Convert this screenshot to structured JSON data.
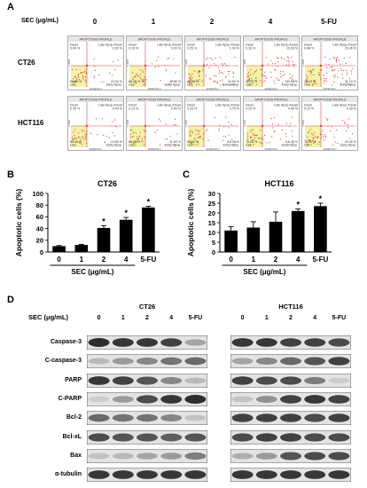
{
  "panels": {
    "a": "A",
    "b": "B",
    "c": "C",
    "d": "D"
  },
  "flow": {
    "sec_label": "SEC (μg/mL)",
    "columns": [
      "0",
      "1",
      "2",
      "4",
      "5-FU"
    ],
    "rows": [
      {
        "name": "CT26",
        "plots": [
          {
            "dead": "0.09 %",
            "late": "0.00 %",
            "live": "99.81 %",
            "early": "10.00 %"
          },
          {
            "dead": "0.19 %",
            "late": "0.00 %",
            "live": "86.28 %",
            "early": "11.56 %"
          },
          {
            "dead": "0.25 %",
            "late": "1.04 %",
            "live": "64.80 %",
            "early": "34.95 %"
          },
          {
            "dead": "0.18 %",
            "late": "10.28 %",
            "live": "40.25 %",
            "early": "40.95 %"
          },
          {
            "dead": "0.48 %",
            "late": "20.46 %",
            "live": "25.10 %",
            "early": "41.10 %"
          }
        ]
      },
      {
        "name": "HCT116",
        "plots": [
          {
            "dead": "0.05 %",
            "late": "0.00 %",
            "live": "89.35 %",
            "early": "10.60 %"
          },
          {
            "dead": "0.19 %",
            "late": "0.00 %",
            "live": "84.95 %",
            "early": "11.60 %"
          },
          {
            "dead": "0.25 %",
            "late": "3.75 %",
            "live": "80.60 %",
            "early": "15.40 %"
          },
          {
            "dead": "0.25 %",
            "late": "4.08 %",
            "live": "78.05 %",
            "early": "18.45 %"
          },
          {
            "dead": "0.10 %",
            "late": "4.28 %",
            "live": "78.10 %",
            "early": "20.45 %"
          }
        ]
      }
    ],
    "plot_header": "APOPTOSIS PROFILE",
    "q_dead": "Dead",
    "q_late": "Late Apop./Dead",
    "q_live": "Live",
    "q_early": "Early Apop.",
    "x_axis": "ANNEXIN V",
    "y_axis": "7-AAD"
  },
  "chart_data": [
    {
      "type": "bar",
      "title": "CT26",
      "categories": [
        "0",
        "1",
        "2",
        "4",
        "5-FU"
      ],
      "values": [
        10,
        12,
        41,
        55,
        76
      ],
      "errors": [
        1,
        1,
        4,
        4,
        2
      ],
      "significant": [
        false,
        false,
        true,
        true,
        true
      ],
      "ylabel": "Apoptotic cells (%)",
      "xlabel": "SEC (μg/mL)",
      "ylim": [
        0,
        100
      ],
      "yticks": [
        "0",
        "20",
        "40",
        "60",
        "80",
        "100"
      ],
      "bar_color": "#000000"
    },
    {
      "type": "bar",
      "title": "HCT116",
      "categories": [
        "0",
        "1",
        "2",
        "4",
        "5-FU"
      ],
      "values": [
        11,
        12.5,
        15.5,
        21,
        23.5
      ],
      "errors": [
        2,
        3,
        5,
        1,
        1.5
      ],
      "significant": [
        false,
        false,
        false,
        true,
        true
      ],
      "ylabel": "Apoptotic cells (%)",
      "xlabel": "SEC (μg/mL)",
      "ylim": [
        0,
        30
      ],
      "yticks": [
        "0",
        "5",
        "10",
        "15",
        "20",
        "25",
        "30"
      ],
      "bar_color": "#000000"
    }
  ],
  "star": "*",
  "western": {
    "sec_label": "SEC (μg/mL)",
    "groups": [
      "CT26",
      "HCT116"
    ],
    "lanes": [
      "0",
      "1",
      "2",
      "4",
      "5-FU"
    ],
    "proteins": [
      "Caspase-3",
      "C-caspase-3",
      "PARP",
      "C-PARP",
      "Bcl-2",
      "Bcl-xL",
      "Bax",
      "α-tubulin"
    ],
    "intensity": {
      "CT26": [
        [
          0.9,
          0.85,
          0.85,
          0.8,
          0.3
        ],
        [
          0.2,
          0.35,
          0.45,
          0.55,
          0.6
        ],
        [
          0.85,
          0.8,
          0.7,
          0.45,
          0.2
        ],
        [
          0.1,
          0.35,
          0.75,
          0.85,
          0.9
        ],
        [
          0.6,
          0.55,
          0.55,
          0.45,
          0.15
        ],
        [
          0.75,
          0.7,
          0.7,
          0.65,
          0.7
        ],
        [
          0.15,
          0.2,
          0.3,
          0.35,
          0.5
        ],
        [
          0.85,
          0.85,
          0.85,
          0.85,
          0.85
        ]
      ],
      "HCT116": [
        [
          0.85,
          0.85,
          0.8,
          0.8,
          0.75
        ],
        [
          0.3,
          0.45,
          0.6,
          0.7,
          0.8
        ],
        [
          0.8,
          0.75,
          0.75,
          0.5,
          0.1
        ],
        [
          0.15,
          0.4,
          0.8,
          0.85,
          0.8
        ],
        [
          0.8,
          0.8,
          0.8,
          0.75,
          0.8
        ],
        [
          0.75,
          0.8,
          0.8,
          0.75,
          0.75
        ],
        [
          0.25,
          0.35,
          0.7,
          0.75,
          0.75
        ],
        [
          0.85,
          0.85,
          0.85,
          0.85,
          0.85
        ]
      ]
    }
  }
}
